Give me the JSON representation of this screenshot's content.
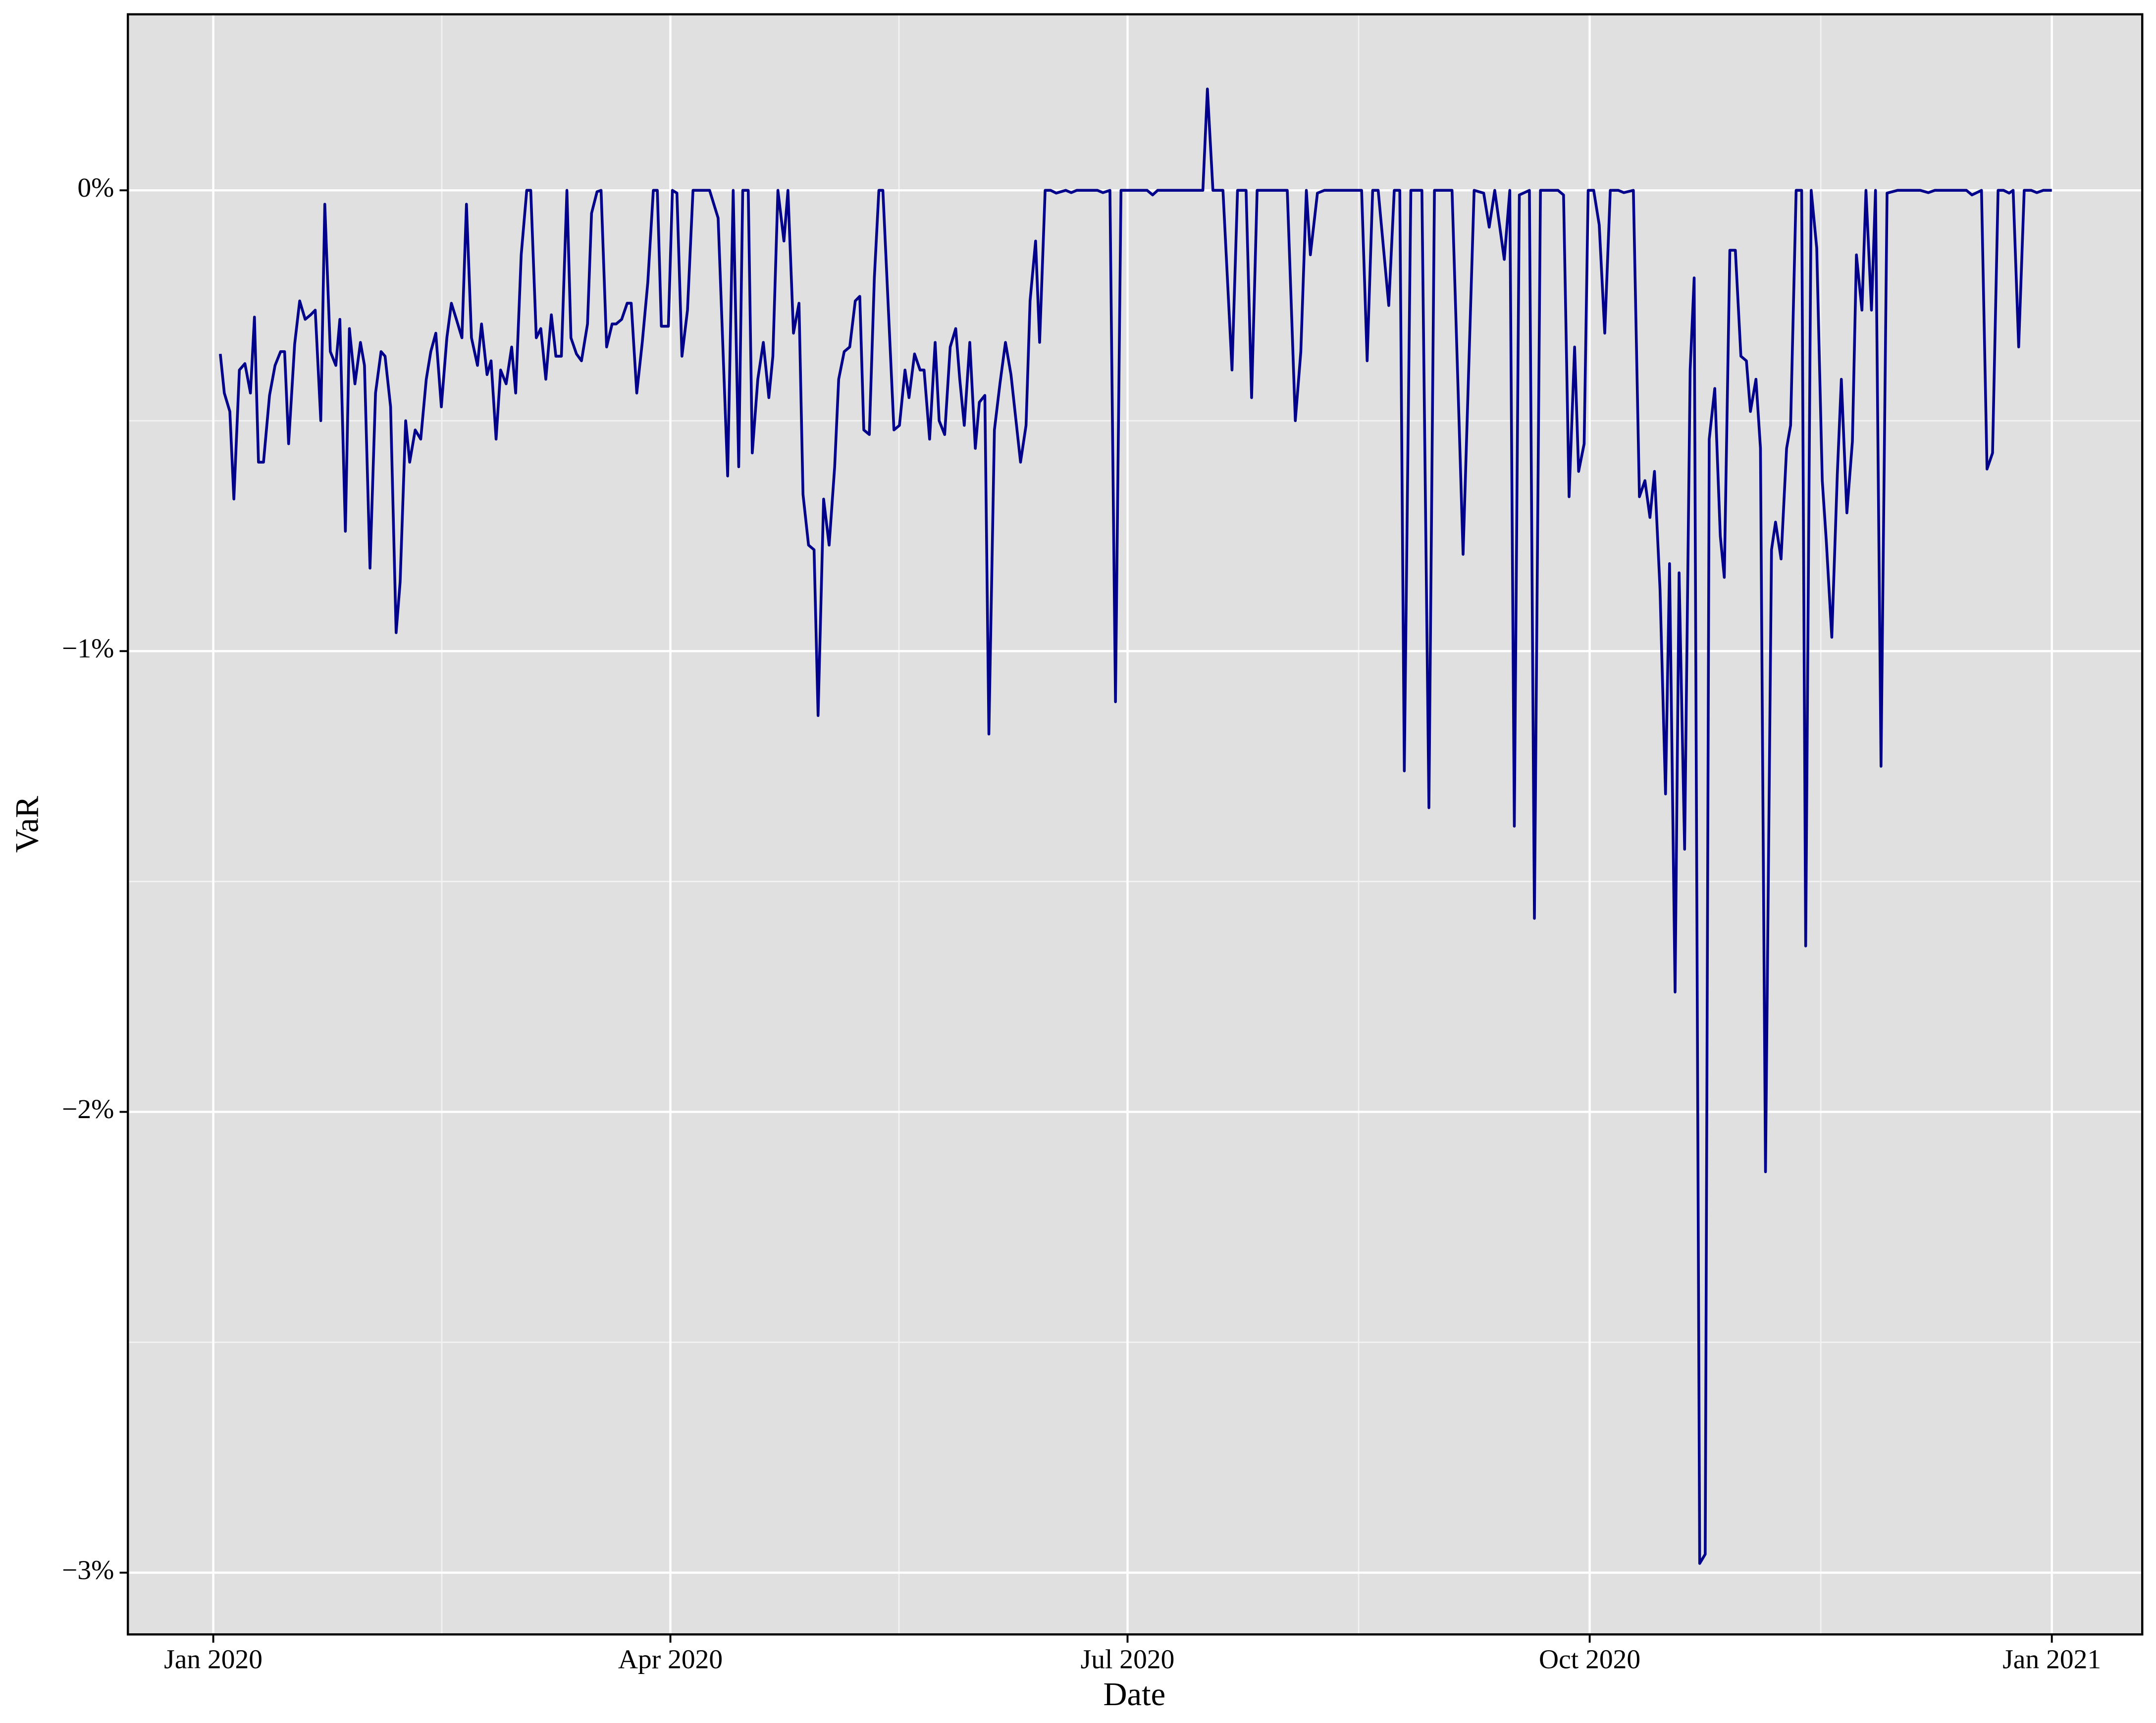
{
  "chart_data": {
    "type": "line",
    "xlabel": "Date",
    "ylabel": "VaR",
    "x": [
      1.4,
      2.2,
      3.3,
      4.1,
      5.2,
      6.3,
      7.4,
      8.2,
      9,
      10,
      11.2,
      12.3,
      13.4,
      14.2,
      15,
      16.2,
      17.2,
      18.3,
      19.4,
      20.3,
      21.4,
      22.2,
      23.3,
      24.4,
      25.2,
      26.3,
      27.1,
      28.2,
      29.3,
      30.1,
      31.2,
      32.3,
      33.4,
      34.2,
      35.3,
      36.4,
      37.2,
      38.3,
      39.1,
      40.2,
      41.3,
      42.4,
      43.3,
      44.3,
      45.4,
      46.5,
      47.4,
      48.4,
      49.5,
      50.4,
      51.4,
      52.6,
      53.4,
      54.5,
      55.3,
      56.3,
      57.2,
      58.3,
      59.4,
      60.2,
      61.3,
      62.4,
      63.2,
      64.3,
      65.2,
      66.2,
      67.3,
      68.2,
      69.3,
      70.4,
      71.2,
      72.3,
      73.3,
      74.5,
      75.3,
      76.4,
      77.2,
      78.3,
      79.4,
      80.2,
      81.3,
      82.4,
      83.2,
      84.3,
      85.4,
      86.5,
      87.6,
      88.4,
      89.2,
      90.6,
      91.4,
      92.3,
      93.3,
      94.4,
      95.5,
      96.6,
      97.7,
      98.8,
      100.5,
      102.4,
      103.5,
      104.6,
      105.4,
      106.5,
      107.3,
      108.4,
      109.5,
      110.6,
      111.4,
      112.4,
      113.6,
      114.4,
      115.5,
      116.6,
      117.4,
      118.5,
      119.6,
      120.4,
      121.5,
      122.6,
      123.7,
      124.5,
      125.6,
      126.7,
      127.8,
      128.7,
      129.5,
      130.6,
      131.6,
      132.5,
      133.3,
      135.5,
      136.6,
      137.7,
      138.5,
      139.6,
      140.7,
      141.5,
      142.6,
      143.7,
      144.5,
      145.6,
      146.7,
      147.8,
      148.6,
      149.5,
      150.6,
      151.7,
      152.5,
      153.6,
      154.4,
      155.5,
      156.6,
      157.7,
      158.8,
      159.6,
      160.7,
      161.8,
      162.6,
      163.7,
      164.5,
      165.6,
      166.7,
      167.8,
      169.7,
      170.8,
      171.9,
      173,
      176,
      177.1,
      178.5,
      179.6,
      180.7,
      184.5,
      185.9,
      187,
      188,
      189,
      195,
      196.3,
      197,
      197.9,
      199,
      201,
      202.8,
      203.9,
      205.6,
      206.7,
      207.8,
      213.8,
      215.4,
      216.5,
      217.6,
      218.4,
      219.8,
      221.2,
      222.3,
      225,
      226.7,
      228.6,
      229.7,
      230.8,
      231.9,
      234,
      235.1,
      236.2,
      237.1,
      238.4,
      240.6,
      242,
      243.1,
      246.6,
      248.8,
      251,
      252.9,
      254,
      255.1,
      257,
      258.1,
      259,
      260,
      262,
      263,
      264.2,
      267.7,
      268.8,
      269.9,
      271,
      271.8,
      272.9,
      273.7,
      274.8,
      275.9,
      277,
      278.1,
      279.7,
      280.8,
      282.7,
      283.9,
      285,
      286,
      286.9,
      288,
      289.1,
      289.9,
      291,
      291.8,
      292.9,
      294,
      294.8,
      295.9,
      297,
      297.8,
      298.9,
      300,
      300.8,
      301.9,
      303,
      304.1,
      305.2,
      306,
      307.1,
      308,
      309,
      310.2,
      311,
      312.1,
      313.2,
      314,
      315.1,
      316.2,
      317,
      318.1,
      319.2,
      320.3,
      321.1,
      322.2,
      323.3,
      324.1,
      325.2,
      326.3,
      327.1,
      328.2,
      329,
      330.1,
      330.9,
      332,
      333.2,
      335.3,
      337,
      338.4,
      339.8,
      341.4,
      342.7,
      349,
      350.1,
      352,
      353.1,
      354.2,
      355.3,
      356.4,
      357.5,
      358.3,
      359.4,
      360.5,
      361.9,
      363,
      364.3,
      366
    ],
    "values": [
      -0.355,
      -0.44,
      -0.48,
      -0.67,
      -0.39,
      -0.376,
      -0.44,
      -0.275,
      -0.59,
      -0.59,
      -0.445,
      -0.38,
      -0.35,
      -0.35,
      -0.55,
      -0.334,
      -0.24,
      -0.28,
      -0.27,
      -0.26,
      -0.5,
      -0.03,
      -0.35,
      -0.38,
      -0.28,
      -0.74,
      -0.3,
      -0.42,
      -0.33,
      -0.38,
      -0.82,
      -0.44,
      -0.35,
      -0.36,
      -0.47,
      -0.96,
      -0.85,
      -0.5,
      -0.59,
      -0.52,
      -0.54,
      -0.41,
      -0.35,
      -0.31,
      -0.47,
      -0.32,
      -0.245,
      -0.28,
      -0.32,
      -0.03,
      -0.32,
      -0.38,
      -0.29,
      -0.4,
      -0.37,
      -0.54,
      -0.39,
      -0.42,
      -0.34,
      -0.44,
      -0.14,
      0,
      0,
      -0.32,
      -0.3,
      -0.41,
      -0.27,
      -0.36,
      -0.36,
      0,
      -0.32,
      -0.355,
      -0.37,
      -0.29,
      -0.05,
      -0.003,
      0,
      -0.34,
      -0.29,
      -0.29,
      -0.28,
      -0.245,
      -0.245,
      -0.44,
      -0.33,
      -0.2,
      0,
      0,
      -0.295,
      -0.295,
      0,
      -0.006,
      -0.36,
      -0.26,
      0,
      0,
      0,
      0,
      -0.06,
      -0.62,
      0,
      -0.6,
      0,
      0,
      -0.57,
      -0.41,
      -0.33,
      -0.45,
      -0.36,
      0,
      -0.11,
      0,
      -0.31,
      -0.245,
      -0.66,
      -0.77,
      -0.78,
      -1.14,
      -0.67,
      -0.77,
      -0.6,
      -0.41,
      -0.35,
      -0.34,
      -0.24,
      -0.23,
      -0.52,
      -0.53,
      -0.19,
      0,
      0,
      -0.52,
      -0.51,
      -0.39,
      -0.45,
      -0.355,
      -0.39,
      -0.39,
      -0.54,
      -0.33,
      -0.5,
      -0.53,
      -0.34,
      -0.3,
      -0.41,
      -0.51,
      -0.33,
      -0.56,
      -0.46,
      -0.445,
      -1.18,
      -0.52,
      -0.42,
      -0.33,
      -0.4,
      -0.48,
      -0.59,
      -0.51,
      -0.24,
      -0.11,
      -0.33,
      0,
      0,
      -0.006,
      0,
      -0.005,
      0,
      0,
      0,
      -0.005,
      0,
      -1.11,
      0,
      0,
      0,
      -0.01,
      0,
      0,
      0,
      0,
      0,
      0.22,
      0,
      0,
      -0.39,
      0,
      0,
      -0.45,
      0,
      0,
      -0.5,
      -0.35,
      0,
      -0.14,
      -0.006,
      0,
      0,
      0,
      0,
      0,
      -0.37,
      0,
      0,
      -0.25,
      0,
      0,
      -1.26,
      0,
      0,
      -1.34,
      0,
      0,
      -0.79,
      0,
      -0.006,
      -0.08,
      0,
      -0.15,
      0,
      -1.38,
      -0.01,
      0,
      -1.58,
      0,
      0,
      -0.01,
      -0.665,
      -0.34,
      -0.61,
      -0.55,
      0,
      0,
      -0.075,
      -0.31,
      0,
      0,
      -0.005,
      0,
      -0.665,
      -0.63,
      -0.71,
      -0.61,
      -0.865,
      -1.31,
      -0.81,
      -1.74,
      -0.83,
      -1.43,
      -0.39,
      -0.19,
      -2.98,
      -2.96,
      -0.54,
      -0.43,
      -0.75,
      -0.84,
      -0.13,
      -0.13,
      -0.36,
      -0.37,
      -0.48,
      -0.41,
      -0.56,
      -2.13,
      -0.78,
      -0.72,
      -0.8,
      -0.56,
      -0.51,
      0,
      0,
      -1.64,
      0,
      -0.125,
      -0.63,
      -0.76,
      -0.97,
      -0.615,
      -0.41,
      -0.7,
      -0.545,
      -0.14,
      -0.26,
      0,
      -0.26,
      0,
      -1.25,
      -0.006,
      0,
      0,
      0,
      0,
      -0.005,
      0,
      0,
      -0.01,
      0,
      -0.605,
      -0.57,
      0,
      0,
      -0.006,
      0,
      -0.34,
      0,
      0,
      -0.005,
      0,
      0
    ],
    "color": "#00008b",
    "xlim": [
      -17,
      384
    ],
    "xticks": [
      {
        "value": 0,
        "label": "Jan 2020"
      },
      {
        "value": 91,
        "label": "Apr 2020"
      },
      {
        "value": 182,
        "label": "Jul 2020"
      },
      {
        "value": 274,
        "label": "Oct 2020"
      },
      {
        "value": 366,
        "label": "Jan 2021"
      }
    ],
    "ylim": [
      -3.134,
      0.382
    ],
    "yticks": [
      {
        "value": -3,
        "label": "−3%"
      },
      {
        "value": -2,
        "label": "−2%"
      },
      {
        "value": -1,
        "label": "−1%"
      },
      {
        "value": 0,
        "label": "0%"
      }
    ],
    "grid": true
  }
}
